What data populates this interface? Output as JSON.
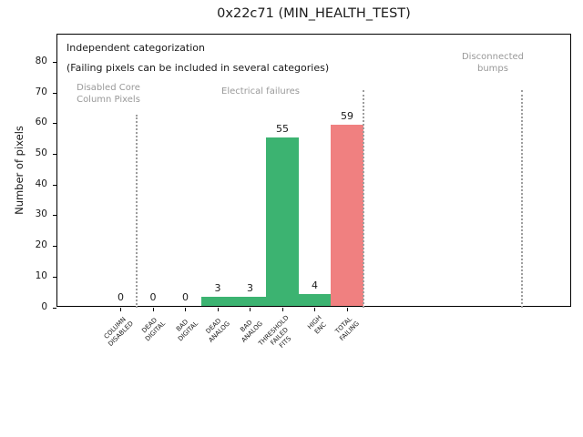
{
  "chart_data": {
    "type": "bar",
    "title": "0x22c71 (MIN_HEALTH_TEST)",
    "xlabel": "",
    "ylabel": "Number of pixels",
    "ylim": [
      0,
      89
    ],
    "yticks": [
      0,
      10,
      20,
      30,
      40,
      50,
      60,
      70,
      80
    ],
    "grid": false,
    "legend": null,
    "categories": [
      "COLUMN\nDISABLED",
      "DEAD\nDIGITAL",
      "BAD\nDIGITAL",
      "DEAD\nANALOG",
      "BAD\nANALOG",
      "THRESHOLD\nFAILED\nFITS",
      "HIGH\nENC",
      "TOTAL\nFAILING"
    ],
    "values": [
      0,
      0,
      0,
      3,
      3,
      55,
      4,
      59
    ],
    "bar_labels": [
      "0",
      "0",
      "0",
      "3",
      "3",
      "55",
      "4",
      "59"
    ],
    "bar_colors": [
      "#3cb371",
      "#3cb371",
      "#3cb371",
      "#3cb371",
      "#3cb371",
      "#3cb371",
      "#3cb371",
      "#f08080"
    ],
    "separators": [
      {
        "x": 0.5,
        "y_top": 63
      },
      {
        "x": 7.5,
        "y_top": 71
      },
      {
        "x": 12.42,
        "y_top": 71
      }
    ],
    "annotations": {
      "note_line1": "Independent categorization",
      "note_line2": "(Failing pixels can be included in several categories)",
      "region1": "Disabled Core\nColumn Pixels",
      "region2": "Electrical failures",
      "region3": "Disconnected\nbumps"
    },
    "colors": {
      "bar_ok": "#3cb371",
      "bar_fail": "#f08080",
      "muted_text": "#999999",
      "separator": "#9d9d9d",
      "axis": "#000000"
    }
  }
}
